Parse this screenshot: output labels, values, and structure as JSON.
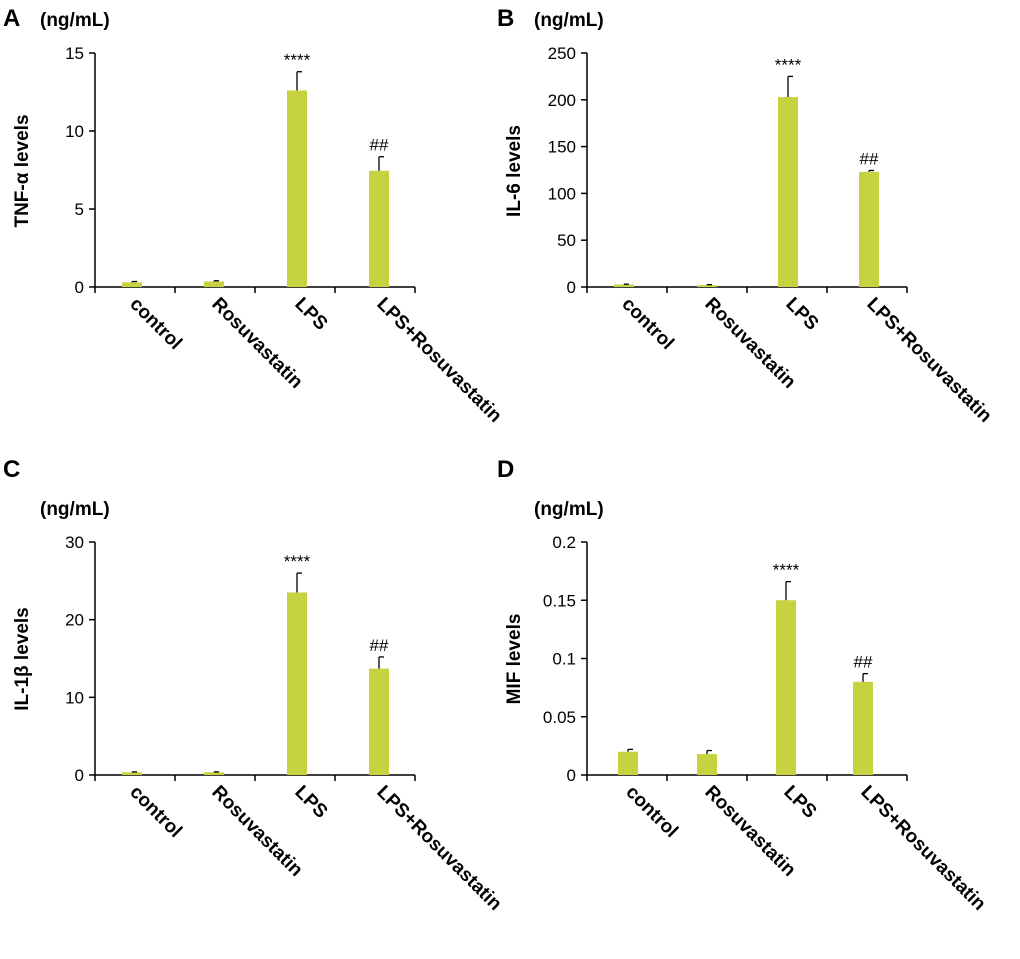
{
  "figure": {
    "bar_color": "#c6d240",
    "axis_color": "#000000"
  },
  "chart_data": [
    {
      "panel": "A",
      "type": "bar",
      "unit": "(ng/mL)",
      "ylabel": "TNF-α  levels",
      "ylim": [
        0,
        15
      ],
      "yticks": [
        0,
        5,
        10,
        15
      ],
      "categories": [
        "control",
        "Rosuvastatin",
        "LPS",
        "LPS+Rosuvastatin"
      ],
      "values": [
        0.3,
        0.35,
        12.6,
        7.45
      ],
      "errors": [
        0.05,
        0.05,
        1.2,
        0.9
      ],
      "annotations": [
        "",
        "",
        "****",
        "##"
      ]
    },
    {
      "panel": "B",
      "type": "bar",
      "unit": "(ng/mL)",
      "ylabel": "IL-6 levels",
      "ylim": [
        0,
        250
      ],
      "yticks": [
        0,
        50,
        100,
        150,
        200,
        250
      ],
      "categories": [
        "control",
        "Rosuvastatin",
        "LPS",
        "LPS+Rosuvastatin"
      ],
      "values": [
        2.5,
        2,
        203,
        123
      ],
      "errors": [
        0.5,
        0.5,
        22,
        1.5
      ],
      "annotations": [
        "",
        "",
        "****",
        "##"
      ]
    },
    {
      "panel": "C",
      "type": "bar",
      "unit": "(ng/mL)",
      "ylabel": "IL-1β levels",
      "ylim": [
        0,
        30
      ],
      "yticks": [
        0,
        10,
        20,
        30
      ],
      "categories": [
        "control",
        "Rosuvastatin",
        "LPS",
        "LPS+Rosuvastatin"
      ],
      "values": [
        0.35,
        0.35,
        23.5,
        13.7
      ],
      "errors": [
        0.05,
        0.05,
        2.5,
        1.5
      ],
      "annotations": [
        "",
        "",
        "****",
        "##"
      ]
    },
    {
      "panel": "D",
      "type": "bar",
      "unit": "(ng/mL)",
      "ylabel": "MIF levels",
      "ylim": [
        0,
        0.2
      ],
      "yticks": [
        0,
        0.05,
        0.1,
        0.15,
        0.2
      ],
      "ytick_labels": [
        "0",
        "0.05",
        "0.1",
        "0.15",
        "0.2"
      ],
      "categories": [
        "control",
        "Rosuvastatin",
        "LPS",
        "LPS+Rosuvastatin"
      ],
      "values": [
        0.02,
        0.018,
        0.15,
        0.08
      ],
      "errors": [
        0.002,
        0.003,
        0.016,
        0.007
      ],
      "annotations": [
        "",
        "",
        "****",
        "##"
      ]
    }
  ]
}
